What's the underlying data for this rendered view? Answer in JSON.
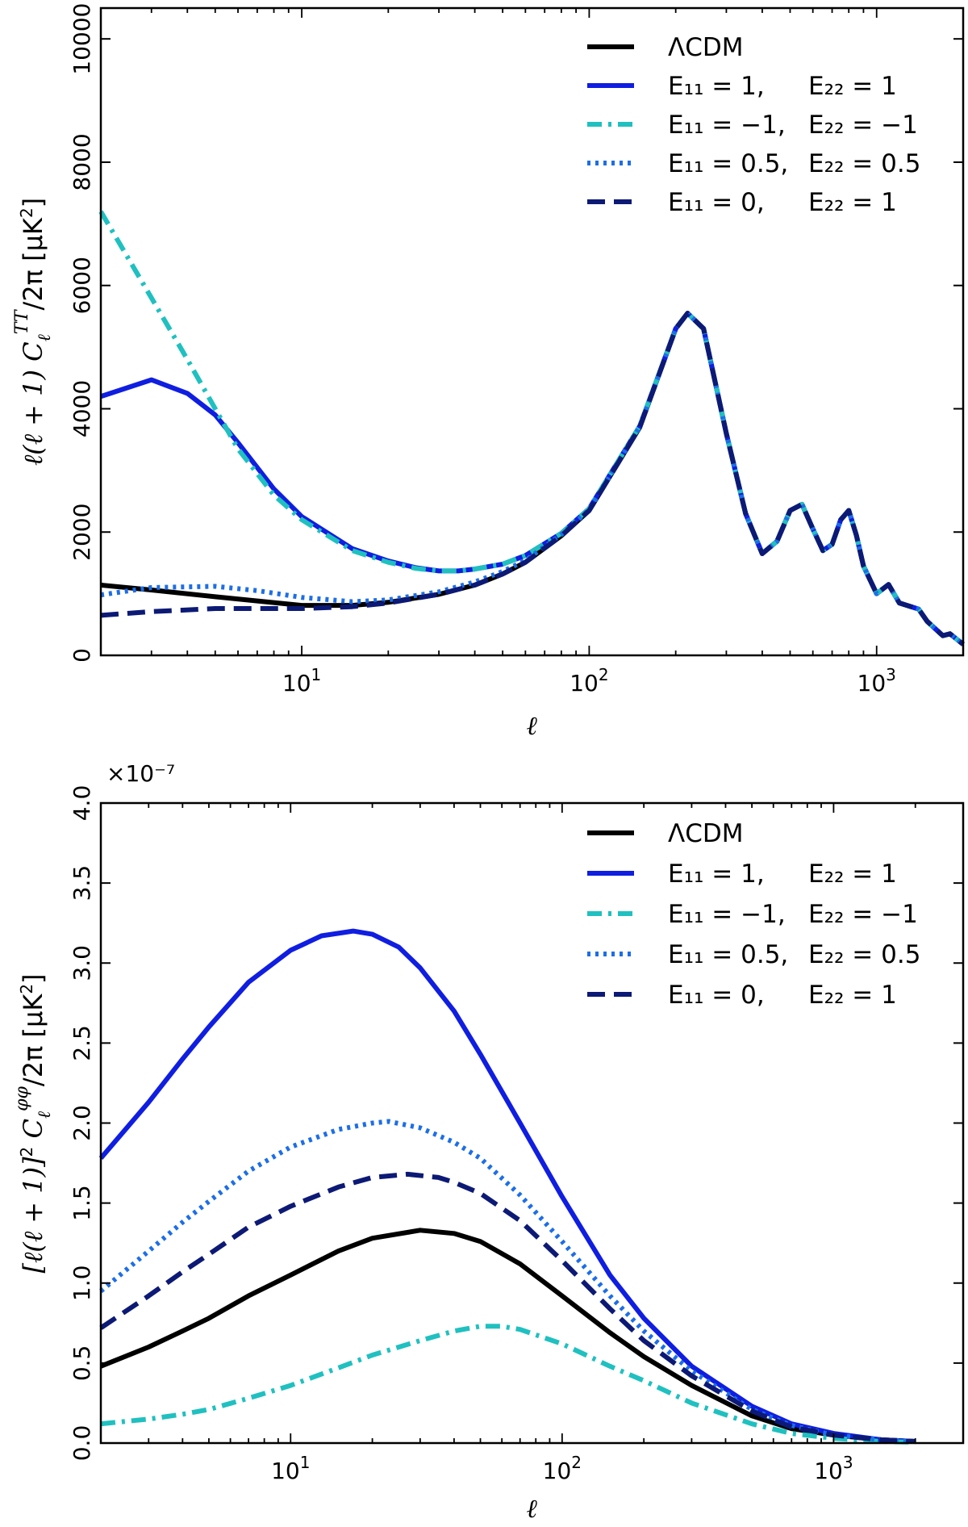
{
  "chart_data": [
    {
      "type": "line",
      "xscale": "log",
      "xlim": [
        2,
        2000
      ],
      "ylim": [
        0,
        10500
      ],
      "xlabel": "ℓ",
      "ylabel": "ℓ(ℓ + 1) C_ℓ^{TT}/2π [μK²]",
      "ylabel_parts": {
        "a": "ℓ(ℓ + 1) C",
        "sub": "ℓ",
        "sup": "TT",
        "b": "/2π  [μK",
        "sq": "2",
        "c": "]"
      },
      "yticks": [
        0,
        2000,
        4000,
        6000,
        8000,
        10000
      ],
      "yticklabels": [
        "0",
        "2000",
        "4000",
        "6000",
        "8000",
        "10000"
      ],
      "xticks": [
        {
          "base": "10",
          "exp": "1",
          "value": 10
        },
        {
          "base": "10",
          "exp": "2",
          "value": 100
        },
        {
          "base": "10",
          "exp": "3",
          "value": 1000
        }
      ],
      "legend_position": "top-right",
      "series": [
        {
          "name": "ΛCDM",
          "label": "ΛCDM",
          "color": "#000000",
          "style": "solid",
          "x": [
            2,
            3,
            5,
            10,
            15,
            20,
            30,
            40,
            50,
            60,
            80,
            100,
            150,
            200,
            220,
            250,
            300,
            350,
            400,
            450,
            500,
            550,
            600,
            650,
            700,
            750,
            800,
            850,
            900,
            1000,
            1100,
            1200,
            1400,
            1500,
            1700,
            1800,
            2000
          ],
          "y": [
            1140,
            1060,
            950,
            810,
            810,
            860,
            990,
            1140,
            1320,
            1510,
            1940,
            2350,
            3700,
            5300,
            5550,
            5300,
            3600,
            2300,
            1650,
            1850,
            2350,
            2450,
            2050,
            1700,
            1800,
            2200,
            2350,
            1950,
            1450,
            1000,
            1150,
            850,
            750,
            550,
            320,
            350,
            180
          ]
        },
        {
          "name": "E11 = 1, E22 = 1",
          "label_a": "E₁₁ = 1,",
          "label_b": "E₂₂ = 1",
          "color": "#0f1ee0",
          "style": "solid",
          "x": [
            2,
            3,
            4,
            5,
            6,
            8,
            10,
            15,
            20,
            25,
            30,
            35,
            40,
            50,
            60,
            80,
            100,
            150,
            200,
            220,
            250,
            300,
            350,
            400,
            450,
            500,
            550,
            600,
            650,
            700,
            750,
            800,
            850,
            900,
            1000,
            1100,
            1200,
            1400,
            1500,
            1700,
            1800,
            2000
          ],
          "y": [
            4200,
            4470,
            4250,
            3900,
            3450,
            2700,
            2250,
            1730,
            1530,
            1420,
            1370,
            1370,
            1400,
            1480,
            1620,
            1980,
            2380,
            3720,
            5300,
            5550,
            5300,
            3600,
            2300,
            1650,
            1850,
            2350,
            2450,
            2050,
            1700,
            1800,
            2200,
            2350,
            1950,
            1450,
            1000,
            1150,
            850,
            750,
            550,
            320,
            350,
            180
          ]
        },
        {
          "name": "E11 = -1, E22 = -1",
          "label_a": "E₁₁ = −1,",
          "label_b": "E₂₂ = −1",
          "color": "#20c0c0",
          "style": "dashdot",
          "x": [
            2,
            3,
            4,
            5,
            6,
            8,
            10,
            15,
            20,
            25,
            30,
            35,
            40,
            50,
            60,
            80,
            100,
            150,
            200,
            220,
            250,
            300,
            350,
            400,
            450,
            500,
            550,
            600,
            650,
            700,
            750,
            800,
            850,
            900,
            1000,
            1100,
            1200,
            1400,
            1500,
            1700,
            1800,
            2000
          ],
          "y": [
            7200,
            5800,
            4800,
            4000,
            3350,
            2600,
            2200,
            1700,
            1510,
            1410,
            1370,
            1370,
            1400,
            1480,
            1620,
            1980,
            2380,
            3720,
            5300,
            5550,
            5300,
            3600,
            2300,
            1650,
            1850,
            2350,
            2450,
            2050,
            1700,
            1800,
            2200,
            2350,
            1950,
            1450,
            1000,
            1150,
            850,
            750,
            550,
            320,
            350,
            180
          ]
        },
        {
          "name": "E11 = 0.5, E22 = 0.5",
          "label_a": "E₁₁ = 0.5,",
          "label_b": "E₂₂ = 0.5",
          "color": "#1c6ee8",
          "style": "dotted",
          "x": [
            2,
            3,
            5,
            7,
            10,
            15,
            20,
            30,
            40,
            50,
            60,
            80,
            100,
            150,
            200,
            220,
            250,
            300,
            350,
            400,
            450,
            500,
            550,
            600,
            650,
            700,
            750,
            800,
            850,
            900,
            1000,
            1100,
            1200,
            1400,
            1500,
            1700,
            1800,
            2000
          ],
          "y": [
            980,
            1100,
            1120,
            1050,
            940,
            870,
            900,
            1030,
            1190,
            1360,
            1540,
            1960,
            2360,
            3710,
            5300,
            5550,
            5300,
            3600,
            2300,
            1650,
            1850,
            2350,
            2450,
            2050,
            1700,
            1800,
            2200,
            2350,
            1950,
            1450,
            1000,
            1150,
            850,
            750,
            550,
            320,
            350,
            180
          ]
        },
        {
          "name": "E11 = 0, E22 = 1",
          "label_a": "E₁₁ = 0,",
          "label_b": "E₂₂ = 1",
          "color": "#0c1a75",
          "style": "dashed",
          "x": [
            2,
            3,
            5,
            7,
            10,
            15,
            20,
            30,
            40,
            50,
            60,
            80,
            100,
            150,
            200,
            220,
            250,
            300,
            350,
            400,
            450,
            500,
            550,
            600,
            650,
            700,
            750,
            800,
            850,
            900,
            1000,
            1100,
            1200,
            1400,
            1500,
            1700,
            1800,
            2000
          ],
          "y": [
            650,
            710,
            760,
            760,
            760,
            790,
            850,
            990,
            1140,
            1320,
            1510,
            1940,
            2350,
            3700,
            5300,
            5550,
            5300,
            3600,
            2300,
            1650,
            1850,
            2350,
            2450,
            2050,
            1700,
            1800,
            2200,
            2350,
            1950,
            1450,
            1000,
            1150,
            850,
            750,
            550,
            320,
            350,
            180
          ]
        }
      ]
    },
    {
      "type": "line",
      "xscale": "log",
      "xlim": [
        2,
        3000
      ],
      "ylim": [
        0,
        4.0
      ],
      "offset_text": "×10⁻⁷",
      "xlabel": "ℓ",
      "ylabel": "[ℓ(ℓ + 1)]² C_ℓ^{φφ}/2π [μK²]",
      "ylabel_parts": {
        "a": "[ℓ(ℓ + 1)]",
        "sq1": "2",
        "a2": " C",
        "sub": "ℓ",
        "sup": "φφ",
        "b": "/2π  [μK",
        "sq": "2",
        "c": "]"
      },
      "yticks": [
        0,
        0.5,
        1.0,
        1.5,
        2.0,
        2.5,
        3.0,
        3.5,
        4.0
      ],
      "yticklabels": [
        "0.0",
        "0.5",
        "1.0",
        "1.5",
        "2.0",
        "2.5",
        "3.0",
        "3.5",
        "4.0"
      ],
      "xticks": [
        {
          "base": "10",
          "exp": "1",
          "value": 10
        },
        {
          "base": "10",
          "exp": "2",
          "value": 100
        },
        {
          "base": "10",
          "exp": "3",
          "value": 1000
        }
      ],
      "legend_position": "top-right",
      "series": [
        {
          "name": "ΛCDM",
          "label": "ΛCDM",
          "color": "#000000",
          "style": "solid",
          "x": [
            2,
            3,
            4,
            5,
            7,
            10,
            15,
            20,
            30,
            40,
            50,
            70,
            100,
            150,
            200,
            300,
            500,
            700,
            1000,
            1500,
            2000
          ],
          "y": [
            0.48,
            0.6,
            0.7,
            0.78,
            0.92,
            1.05,
            1.2,
            1.28,
            1.33,
            1.31,
            1.26,
            1.12,
            0.92,
            0.69,
            0.54,
            0.36,
            0.17,
            0.09,
            0.05,
            0.02,
            0.01
          ]
        },
        {
          "name": "E11 = 1, E22 = 1",
          "label_a": "E₁₁ = 1,",
          "label_b": "E₂₂ = 1",
          "color": "#0f1ee0",
          "style": "solid",
          "x": [
            2,
            3,
            4,
            5,
            7,
            10,
            13,
            17,
            20,
            25,
            30,
            40,
            50,
            70,
            100,
            150,
            200,
            300,
            500,
            700,
            1000,
            1500,
            2000
          ],
          "y": [
            1.78,
            2.13,
            2.4,
            2.6,
            2.88,
            3.08,
            3.17,
            3.2,
            3.18,
            3.1,
            2.97,
            2.7,
            2.43,
            2.0,
            1.54,
            1.05,
            0.78,
            0.48,
            0.23,
            0.12,
            0.06,
            0.02,
            0.01
          ]
        },
        {
          "name": "E11 = -1, E22 = -1",
          "label_a": "E₁₁ = −1,",
          "label_b": "E₂₂ = −1",
          "color": "#20c0c0",
          "style": "dashdot",
          "x": [
            2,
            3,
            4,
            5,
            7,
            10,
            15,
            20,
            30,
            40,
            50,
            60,
            70,
            100,
            150,
            200,
            300,
            500,
            700,
            1000,
            1500,
            2000
          ],
          "y": [
            0.12,
            0.15,
            0.18,
            0.21,
            0.28,
            0.36,
            0.47,
            0.55,
            0.64,
            0.7,
            0.73,
            0.73,
            0.71,
            0.62,
            0.48,
            0.39,
            0.25,
            0.12,
            0.06,
            0.03,
            0.01,
            0.005
          ]
        },
        {
          "name": "E11 = 0.5, E22 = 0.5",
          "label_a": "E₁₁ = 0.5,",
          "label_b": "E₂₂ = 0.5",
          "color": "#1c6ee8",
          "style": "dotted",
          "x": [
            2,
            3,
            4,
            5,
            7,
            10,
            15,
            20,
            23,
            30,
            40,
            50,
            70,
            100,
            150,
            200,
            300,
            500,
            700,
            1000,
            1500,
            2000
          ],
          "y": [
            0.95,
            1.2,
            1.38,
            1.51,
            1.7,
            1.85,
            1.96,
            2.0,
            2.01,
            1.97,
            1.88,
            1.78,
            1.55,
            1.26,
            0.92,
            0.7,
            0.45,
            0.21,
            0.11,
            0.05,
            0.02,
            0.01
          ]
        },
        {
          "name": "E11 = 0, E22 = 1",
          "label_a": "E₁₁ = 0,",
          "label_b": "E₂₂ = 1",
          "color": "#0c1a75",
          "style": "dashed",
          "x": [
            2,
            3,
            4,
            5,
            7,
            10,
            15,
            20,
            27,
            35,
            40,
            50,
            70,
            100,
            150,
            200,
            300,
            500,
            700,
            1000,
            1500,
            2000
          ],
          "y": [
            0.72,
            0.92,
            1.07,
            1.18,
            1.35,
            1.48,
            1.6,
            1.66,
            1.68,
            1.66,
            1.63,
            1.56,
            1.39,
            1.14,
            0.84,
            0.64,
            0.42,
            0.2,
            0.1,
            0.05,
            0.02,
            0.01
          ]
        }
      ]
    }
  ]
}
